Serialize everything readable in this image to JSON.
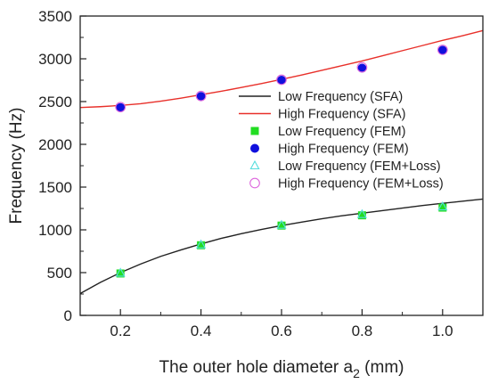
{
  "chart_data": {
    "type": "scatter",
    "xlabel": "The outer hole diameter a",
    "xlabel_sub": "2",
    "xlabel_unit": " (mm)",
    "ylabel": "Frequency (Hz)",
    "xlim": [
      0.1,
      1.1
    ],
    "ylim": [
      0,
      3500
    ],
    "xticks": [
      0.2,
      0.4,
      0.6,
      0.8,
      1.0
    ],
    "xtick_labels": [
      "0.2",
      "0.4",
      "0.6",
      "0.8",
      "1.0"
    ],
    "yticks": [
      0,
      500,
      1000,
      1500,
      2000,
      2500,
      3000,
      3500
    ],
    "ytick_labels": [
      "0",
      "500",
      "1000",
      "1500",
      "2000",
      "2500",
      "3000",
      "3500"
    ],
    "grid": false,
    "legend_position": "center-right",
    "series": [
      {
        "name": "Low Frequency (SFA)",
        "kind": "line",
        "color": "#222222",
        "x": [
          0.1,
          0.15,
          0.2,
          0.25,
          0.3,
          0.35,
          0.4,
          0.45,
          0.5,
          0.55,
          0.6,
          0.65,
          0.7,
          0.75,
          0.8,
          0.85,
          0.9,
          0.95,
          1.0,
          1.05,
          1.1
        ],
        "y": [
          255,
          385,
          500,
          600,
          690,
          765,
          835,
          900,
          955,
          1005,
          1050,
          1090,
          1130,
          1165,
          1195,
          1225,
          1255,
          1285,
          1310,
          1335,
          1360
        ]
      },
      {
        "name": "High Frequency (SFA)",
        "kind": "line",
        "color": "#e8302a",
        "x": [
          0.1,
          0.15,
          0.2,
          0.25,
          0.3,
          0.35,
          0.4,
          0.45,
          0.5,
          0.55,
          0.6,
          0.65,
          0.7,
          0.75,
          0.8,
          0.85,
          0.9,
          0.95,
          1.0,
          1.05,
          1.1
        ],
        "y": [
          2430,
          2440,
          2455,
          2475,
          2505,
          2540,
          2580,
          2620,
          2665,
          2710,
          2760,
          2810,
          2865,
          2920,
          2975,
          3035,
          3095,
          3155,
          3215,
          3270,
          3330
        ]
      },
      {
        "name": "Low Frequency (FEM)",
        "kind": "marker",
        "marker": "square",
        "color": "#22dd22",
        "x": [
          0.2,
          0.4,
          0.6,
          0.8,
          1.0
        ],
        "y": [
          490,
          820,
          1050,
          1170,
          1260
        ]
      },
      {
        "name": "High Frequency (FEM)",
        "kind": "marker",
        "marker": "circle",
        "color": "#1010dd",
        "x": [
          0.2,
          0.4,
          0.6,
          0.8,
          1.0
        ],
        "y": [
          2430,
          2560,
          2750,
          2890,
          3100
        ]
      },
      {
        "name": "Low Frequency (FEM+Loss)",
        "kind": "marker",
        "marker": "triangle-open",
        "color": "#55dddd",
        "x": [
          0.2,
          0.4,
          0.6,
          0.8,
          1.0
        ],
        "y": [
          495,
          825,
          1055,
          1180,
          1270
        ]
      },
      {
        "name": "High Frequency (FEM+Loss)",
        "kind": "marker",
        "marker": "circle-open",
        "color": "#dd66dd",
        "x": [
          0.2,
          0.4,
          0.6,
          0.8,
          1.0
        ],
        "y": [
          2435,
          2565,
          2755,
          2900,
          3105
        ]
      }
    ]
  }
}
